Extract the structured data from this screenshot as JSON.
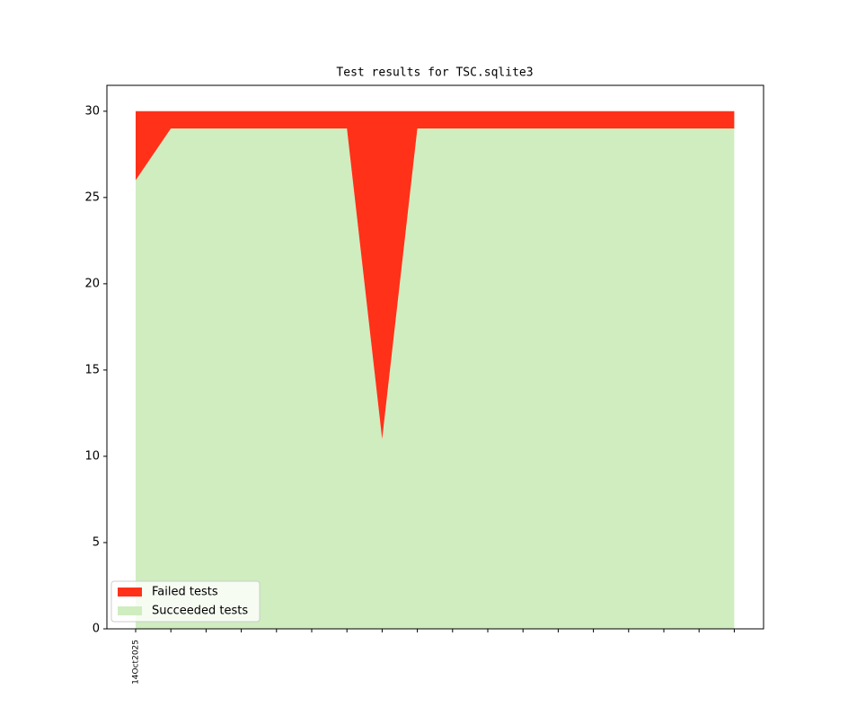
{
  "chart_data": {
    "type": "stacked-area",
    "title": "Test results for TSC.sqlite3",
    "categories": [
      "14Oct2025",
      null,
      null,
      null,
      null,
      null,
      null,
      null,
      null,
      null,
      null,
      null,
      null,
      null,
      null,
      null,
      null,
      null
    ],
    "series": [
      {
        "name": "Failed tests",
        "color": "#ff3119",
        "values": [
          4,
          1,
          1,
          1,
          1,
          1,
          1,
          19,
          1,
          1,
          1,
          1,
          1,
          1,
          1,
          1,
          1,
          1
        ]
      },
      {
        "name": "Succeeded tests",
        "color": "#cfedbf",
        "values": [
          26,
          29,
          29,
          29,
          29,
          29,
          29,
          11,
          29,
          29,
          29,
          29,
          29,
          29,
          29,
          29,
          29,
          29
        ]
      }
    ],
    "ylim": [
      0,
      31.5
    ],
    "yticks": [
      0,
      5,
      10,
      15,
      20,
      25,
      30
    ],
    "legend": "lower left"
  }
}
